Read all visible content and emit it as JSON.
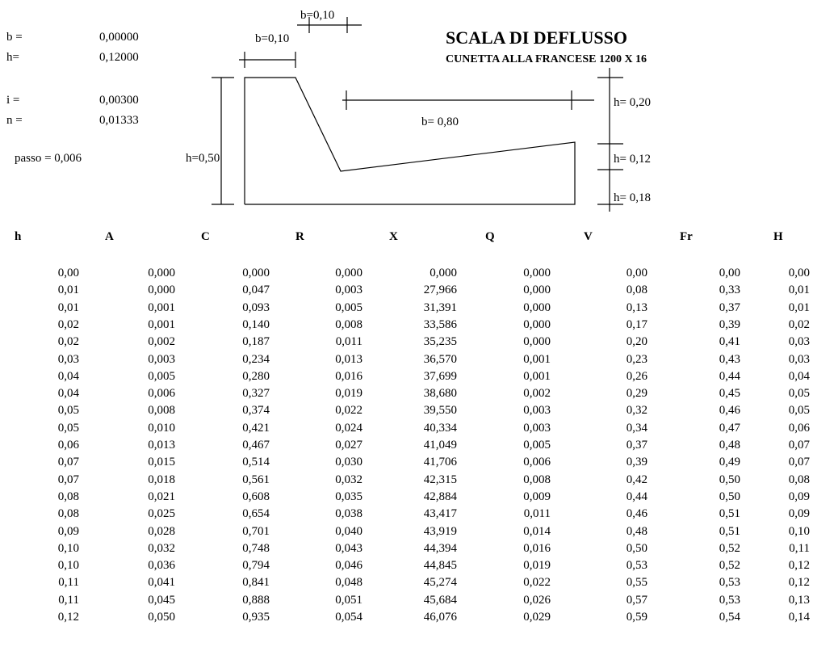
{
  "params": [
    {
      "label": "b =",
      "value": "0,00000"
    },
    {
      "label": "h=",
      "value": "0,12000"
    },
    {
      "label": "i =",
      "value": "0,00300"
    },
    {
      "label": "n =",
      "value": "0,01333"
    }
  ],
  "passo": "passo = 0,006",
  "title": "SCALA DI DEFLUSSO",
  "subtitle": "CUNETTA ALLA FRANCESE 1200 X 16",
  "diagram": {
    "b_top": "b=0,10",
    "b_left": "b=0,10",
    "b_bottom": "b= 0,80",
    "h_left": "h=0,50",
    "h_r1": "h= 0,20",
    "h_r2": "h= 0,12",
    "h_r3": "h= 0,18"
  },
  "table": {
    "headers": [
      "h",
      "A",
      "C",
      "R",
      "X",
      "Q",
      "V",
      "Fr",
      "H"
    ],
    "rows": [
      [
        "0,00",
        "0,000",
        "0,000",
        "0,000",
        "0,000",
        "0,000",
        "0,00",
        "0,00",
        "0,00"
      ],
      [
        "0,01",
        "0,000",
        "0,047",
        "0,003",
        "27,966",
        "0,000",
        "0,08",
        "0,33",
        "0,01"
      ],
      [
        "0,01",
        "0,001",
        "0,093",
        "0,005",
        "31,391",
        "0,000",
        "0,13",
        "0,37",
        "0,01"
      ],
      [
        "0,02",
        "0,001",
        "0,140",
        "0,008",
        "33,586",
        "0,000",
        "0,17",
        "0,39",
        "0,02"
      ],
      [
        "0,02",
        "0,002",
        "0,187",
        "0,011",
        "35,235",
        "0,000",
        "0,20",
        "0,41",
        "0,03"
      ],
      [
        "0,03",
        "0,003",
        "0,234",
        "0,013",
        "36,570",
        "0,001",
        "0,23",
        "0,43",
        "0,03"
      ],
      [
        "0,04",
        "0,005",
        "0,280",
        "0,016",
        "37,699",
        "0,001",
        "0,26",
        "0,44",
        "0,04"
      ],
      [
        "0,04",
        "0,006",
        "0,327",
        "0,019",
        "38,680",
        "0,002",
        "0,29",
        "0,45",
        "0,05"
      ],
      [
        "0,05",
        "0,008",
        "0,374",
        "0,022",
        "39,550",
        "0,003",
        "0,32",
        "0,46",
        "0,05"
      ],
      [
        "0,05",
        "0,010",
        "0,421",
        "0,024",
        "40,334",
        "0,003",
        "0,34",
        "0,47",
        "0,06"
      ],
      [
        "0,06",
        "0,013",
        "0,467",
        "0,027",
        "41,049",
        "0,005",
        "0,37",
        "0,48",
        "0,07"
      ],
      [
        "0,07",
        "0,015",
        "0,514",
        "0,030",
        "41,706",
        "0,006",
        "0,39",
        "0,49",
        "0,07"
      ],
      [
        "0,07",
        "0,018",
        "0,561",
        "0,032",
        "42,315",
        "0,008",
        "0,42",
        "0,50",
        "0,08"
      ],
      [
        "0,08",
        "0,021",
        "0,608",
        "0,035",
        "42,884",
        "0,009",
        "0,44",
        "0,50",
        "0,09"
      ],
      [
        "0,08",
        "0,025",
        "0,654",
        "0,038",
        "43,417",
        "0,011",
        "0,46",
        "0,51",
        "0,09"
      ],
      [
        "0,09",
        "0,028",
        "0,701",
        "0,040",
        "43,919",
        "0,014",
        "0,48",
        "0,51",
        "0,10"
      ],
      [
        "0,10",
        "0,032",
        "0,748",
        "0,043",
        "44,394",
        "0,016",
        "0,50",
        "0,52",
        "0,11"
      ],
      [
        "0,10",
        "0,036",
        "0,794",
        "0,046",
        "44,845",
        "0,019",
        "0,53",
        "0,52",
        "0,12"
      ],
      [
        "0,11",
        "0,041",
        "0,841",
        "0,048",
        "45,274",
        "0,022",
        "0,55",
        "0,53",
        "0,12"
      ],
      [
        "0,11",
        "0,045",
        "0,888",
        "0,051",
        "45,684",
        "0,026",
        "0,57",
        "0,53",
        "0,13"
      ],
      [
        "0,12",
        "0,050",
        "0,935",
        "0,054",
        "46,076",
        "0,029",
        "0,59",
        "0,54",
        "0,14"
      ]
    ]
  }
}
